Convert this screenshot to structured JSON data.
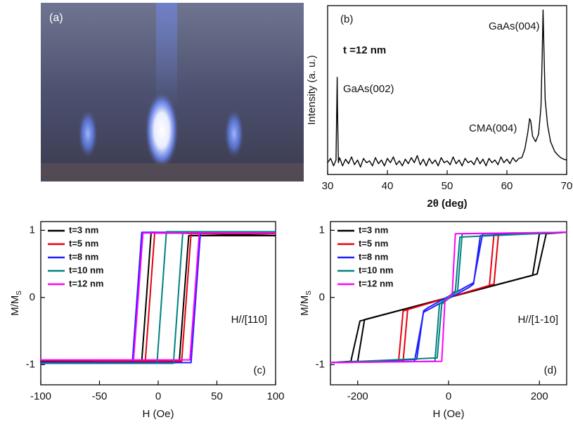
{
  "chart_data": [
    {
      "type": "image",
      "label": "(a)"
    },
    {
      "type": "line",
      "label": "(b)",
      "log_y": true,
      "color": "#000000",
      "xlabel": "2θ (deg)",
      "ylabel": "Intensity (a. u.)",
      "annotations": [
        "t =12 nm",
        "GaAs(002)",
        "GaAs(004)",
        "CMA(004)"
      ],
      "xlim": [
        30,
        70
      ],
      "xticks": [
        30,
        40,
        50,
        60,
        70
      ],
      "ylim": [
        1,
        10000
      ],
      "x": [
        30,
        30.5,
        31,
        31.4,
        31.55,
        31.6,
        31.65,
        31.8,
        32,
        32.5,
        33,
        33.5,
        34,
        34.5,
        35,
        35.5,
        36,
        36.5,
        37,
        37.5,
        38,
        38.5,
        39,
        39.5,
        40,
        40.5,
        41,
        41.5,
        42,
        42.5,
        43,
        43.5,
        44,
        44.5,
        45,
        45.5,
        46,
        46.5,
        47,
        47.5,
        48,
        48.5,
        49,
        49.5,
        50,
        50.5,
        51,
        51.5,
        52,
        52.5,
        53,
        53.5,
        54,
        54.5,
        55,
        55.5,
        56,
        56.5,
        57,
        57.5,
        58,
        58.5,
        59,
        59.5,
        60,
        60.5,
        61,
        61.5,
        62,
        62.5,
        63,
        63.5,
        63.8,
        64,
        64.3,
        64.8,
        65.3,
        65.7,
        65.9,
        66.05,
        66.2,
        66.4,
        66.8,
        67.3,
        68,
        68.5,
        69,
        69.5,
        70
      ],
      "values": [
        1.9,
        2.4,
        1.6,
        2.2,
        60,
        200,
        40,
        1.9,
        2.5,
        1.6,
        2.3,
        1.8,
        2.6,
        1.7,
        2.2,
        1.5,
        2.4,
        1.9,
        2.1,
        1.6,
        2.5,
        1.8,
        2.2,
        1.6,
        2.4,
        1.9,
        2.6,
        1.7,
        2.1,
        1.6,
        2.3,
        1.8,
        2.5,
        1.9,
        2.8,
        1.7,
        2.3,
        1.6,
        2.4,
        1.8,
        2.2,
        1.6,
        2.5,
        1.9,
        2.1,
        1.7,
        2.6,
        1.8,
        2.2,
        1.6,
        2.4,
        1.9,
        2.1,
        1.7,
        2.5,
        1.8,
        2.3,
        1.6,
        2.4,
        1.9,
        2.2,
        1.7,
        2.6,
        1.9,
        2.3,
        1.8,
        2.5,
        2.0,
        2.4,
        2.5,
        4,
        10,
        21,
        18,
        8,
        6,
        9,
        40,
        600,
        7900,
        900,
        60,
        15,
        6,
        3.5,
        2.9,
        2.5,
        2.3,
        2.2
      ]
    },
    {
      "type": "loop",
      "label": "(c)",
      "annotation": "H//[110]",
      "legend": "upper left",
      "xlabel": "H (Oe)",
      "ylabel": "M/M",
      "ylabel_sub": "S",
      "xlim": [
        -100,
        100
      ],
      "xticks": [
        -100,
        -50,
        0,
        50,
        100
      ],
      "ylim": [
        -1.3,
        1.13
      ],
      "yticks": [
        -1,
        0,
        1
      ],
      "series": [
        {
          "name": "t=3 nm",
          "color": "#000000",
          "x": [
            100,
            -6,
            -10,
            -14,
            -100,
            -100,
            18,
            22,
            26,
            100
          ],
          "values": [
            0.92,
            0.97,
            0,
            -0.95,
            -0.95,
            -0.95,
            -0.95,
            0,
            0.92,
            0.92
          ]
        },
        {
          "name": "t=5 nm",
          "color": "#e8000b",
          "x": [
            100,
            -3,
            -7,
            -11,
            -100,
            -100,
            20,
            24,
            28,
            100
          ],
          "values": [
            0.95,
            0.96,
            0,
            -0.95,
            -0.96,
            -0.96,
            -0.95,
            0,
            0.95,
            0.95
          ]
        },
        {
          "name": "t=8 nm",
          "color": "#1f1fff",
          "x": [
            100,
            -14,
            -18,
            -22,
            -100,
            -100,
            28,
            32,
            36,
            100
          ],
          "values": [
            0.97,
            0.97,
            0,
            -0.97,
            -0.97,
            -0.97,
            -0.97,
            0,
            0.97,
            0.97
          ]
        },
        {
          "name": "t=10 nm",
          "color": "#008080",
          "x": [
            100,
            7,
            3,
            -1,
            -100,
            -100,
            13,
            17,
            21,
            100
          ],
          "values": [
            0.98,
            0.98,
            0,
            -0.98,
            -0.98,
            -0.98,
            -0.98,
            0,
            0.98,
            0.98
          ]
        },
        {
          "name": "t=12 nm",
          "color": "#ff00ff",
          "x": [
            100,
            -13,
            -17,
            -21,
            -100,
            -100,
            27,
            31,
            35,
            100
          ],
          "values": [
            0.96,
            0.96,
            0,
            -0.93,
            -0.93,
            -0.93,
            -0.93,
            0,
            0.96,
            0.96
          ]
        }
      ]
    },
    {
      "type": "loop",
      "label": "(d)",
      "annotation": "H//[1-10]",
      "legend": "upper left",
      "xlabel": "H (Oe)",
      "ylabel": "M/M",
      "ylabel_sub": "S",
      "xlim": [
        -260,
        260
      ],
      "xticks": [
        -200,
        0,
        200
      ],
      "ylim": [
        -1.3,
        1.13
      ],
      "yticks": [
        -1,
        0,
        1
      ],
      "series": [
        {
          "name": "t=3 nm",
          "color": "#000000",
          "x": [
            260,
            215,
            195,
            -185,
            -200,
            -260,
            -260,
            -215,
            -195,
            185,
            200,
            260
          ],
          "values": [
            0.97,
            0.95,
            0.35,
            -0.33,
            -0.95,
            -0.97,
            -0.97,
            -0.95,
            -0.35,
            0.33,
            0.95,
            0.97
          ]
        },
        {
          "name": "t=5 nm",
          "color": "#e8000b",
          "x": [
            260,
            110,
            100,
            -90,
            -100,
            -260,
            -260,
            -110,
            -100,
            90,
            100,
            260
          ],
          "values": [
            0.97,
            0.95,
            0.2,
            -0.18,
            -0.95,
            -0.97,
            -0.97,
            -0.95,
            -0.2,
            0.18,
            0.95,
            0.97
          ]
        },
        {
          "name": "t=8 nm",
          "color": "#1f1fff",
          "x": [
            260,
            75,
            55,
            -45,
            -55,
            -70,
            -260,
            -260,
            -75,
            -55,
            45,
            55,
            70,
            260
          ],
          "values": [
            0.97,
            0.95,
            0.22,
            -0.15,
            -0.2,
            -0.92,
            -0.97,
            -0.97,
            -0.95,
            -0.22,
            0.15,
            0.2,
            0.92,
            0.97
          ]
        },
        {
          "name": "t=10 nm",
          "color": "#008080",
          "x": [
            260,
            30,
            20,
            -15,
            -25,
            -260,
            -260,
            -30,
            -20,
            15,
            25,
            260
          ],
          "values": [
            0.97,
            0.95,
            0.1,
            -0.1,
            -0.9,
            -0.97,
            -0.97,
            -0.95,
            -0.1,
            0.1,
            0.9,
            0.97
          ]
        },
        {
          "name": "t=12 nm",
          "color": "#ff00ff",
          "x": [
            260,
            15,
            8,
            -8,
            -15,
            -260,
            -260,
            -15,
            -8,
            8,
            15,
            260
          ],
          "values": [
            0.97,
            0.95,
            0.05,
            -0.05,
            -0.95,
            -0.97,
            -0.97,
            -0.95,
            -0.05,
            0.05,
            0.95,
            0.97
          ]
        }
      ]
    }
  ]
}
